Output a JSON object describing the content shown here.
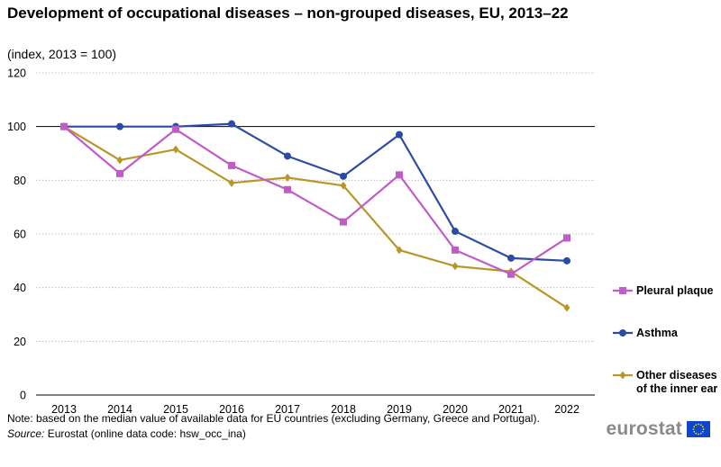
{
  "header": {
    "title": "Development of occupational diseases – non-grouped diseases, EU, 2013–22",
    "subtitle": "(index, 2013 = 100)"
  },
  "chart_data": {
    "type": "line",
    "title": "Development of occupational diseases – non-grouped diseases, EU, 2013–22",
    "subtitle": "(index, 2013 = 100)",
    "categories": [
      "2013",
      "2014",
      "2015",
      "2016",
      "2017",
      "2018",
      "2019",
      "2020",
      "2021",
      "2022"
    ],
    "ylim": [
      0,
      120
    ],
    "yticks": [
      0,
      20,
      40,
      60,
      80,
      100,
      120
    ],
    "xlabel": "",
    "ylabel": "",
    "grid": "horizontal dotted",
    "reference_line": 100,
    "legend_position": "right",
    "series": [
      {
        "name": "Pleural plaque",
        "color": "#c05cc8",
        "marker": "square",
        "values": [
          100,
          82.5,
          99,
          85.5,
          76.5,
          64.5,
          82,
          54,
          45,
          58.5
        ]
      },
      {
        "name": "Asthma",
        "color": "#2a4ca4",
        "marker": "circle",
        "values": [
          100,
          100,
          100,
          101,
          89,
          81.5,
          97,
          61,
          51,
          50
        ]
      },
      {
        "name": "Other diseases of the inner ear",
        "color": "#b8962a",
        "marker": "diamond",
        "values": [
          100,
          87.5,
          91.5,
          79,
          81,
          78,
          54,
          48,
          46,
          32.5
        ]
      }
    ]
  },
  "footer": {
    "note": "Note: based on the median value of available data for EU countries (excluding Germany, Greece and Portugal).",
    "source_label": "Source:",
    "source_text": " Eurostat (online data code: hsw_occ_ina)",
    "logo_text": "eurostat"
  }
}
